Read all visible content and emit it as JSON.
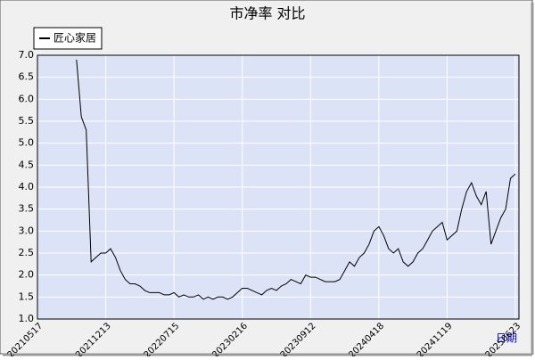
{
  "chart_data": {
    "type": "line",
    "title": "市净率  对比",
    "x_label": "日期",
    "categories": [
      "20210517",
      null,
      null,
      null,
      null,
      null,
      null,
      null,
      null,
      null,
      null,
      null,
      null,
      null,
      "20211213",
      null,
      null,
      null,
      null,
      null,
      null,
      null,
      null,
      null,
      null,
      null,
      null,
      null,
      "20220715",
      null,
      null,
      null,
      null,
      null,
      null,
      null,
      null,
      null,
      null,
      null,
      null,
      null,
      "20230216",
      null,
      null,
      null,
      null,
      null,
      null,
      null,
      null,
      null,
      null,
      null,
      null,
      null,
      "20230912",
      null,
      null,
      null,
      null,
      null,
      null,
      null,
      null,
      null,
      null,
      null,
      null,
      null,
      "20240418",
      null,
      null,
      null,
      null,
      null,
      null,
      null,
      null,
      null,
      null,
      null,
      null,
      null,
      "20241119",
      null,
      null,
      null,
      null,
      null,
      null,
      null,
      null,
      null,
      null,
      null,
      null,
      null,
      "20250623"
    ],
    "series": [
      {
        "name": "匠心家居",
        "color": "#000000",
        "values": [
          null,
          null,
          null,
          null,
          null,
          null,
          null,
          null,
          6.9,
          5.6,
          5.3,
          2.3,
          2.4,
          2.5,
          2.5,
          2.6,
          2.4,
          2.1,
          1.9,
          1.8,
          1.8,
          1.75,
          1.65,
          1.6,
          1.6,
          1.6,
          1.55,
          1.55,
          1.6,
          1.5,
          1.55,
          1.5,
          1.5,
          1.55,
          1.45,
          1.5,
          1.45,
          1.5,
          1.5,
          1.45,
          1.5,
          1.6,
          1.7,
          1.7,
          1.65,
          1.6,
          1.55,
          1.65,
          1.7,
          1.65,
          1.75,
          1.8,
          1.9,
          1.85,
          1.8,
          2.0,
          1.95,
          1.95,
          1.9,
          1.85,
          1.85,
          1.85,
          1.9,
          2.1,
          2.3,
          2.2,
          2.4,
          2.5,
          2.7,
          3.0,
          3.1,
          2.9,
          2.6,
          2.5,
          2.6,
          2.3,
          2.2,
          2.3,
          2.5,
          2.6,
          2.8,
          3.0,
          3.1,
          3.2,
          2.8,
          2.9,
          3.0,
          3.5,
          3.9,
          4.1,
          3.8,
          3.6,
          3.9,
          2.7,
          3.0,
          3.3,
          3.5,
          4.2,
          4.3
        ]
      }
    ],
    "ylim": [
      1,
      7
    ],
    "yticks": [
      {
        "value": 1,
        "label": "1.0"
      },
      {
        "value": 1.5,
        "label": "1.5"
      },
      {
        "value": 2,
        "label": "2.0"
      },
      {
        "value": 2.5,
        "label": "2.5"
      },
      {
        "value": 3,
        "label": "3.0"
      },
      {
        "value": 3.5,
        "label": "3.5"
      },
      {
        "value": 4,
        "label": "4.0"
      },
      {
        "value": 4.5,
        "label": "4.5"
      },
      {
        "value": 5,
        "label": "5.0"
      },
      {
        "value": 5.5,
        "label": "5.5"
      },
      {
        "value": 6,
        "label": "6.0"
      },
      {
        "value": 6.5,
        "label": "6.5"
      },
      {
        "value": 7,
        "label": "7.0"
      }
    ],
    "grid": true,
    "legend": "top-left"
  }
}
